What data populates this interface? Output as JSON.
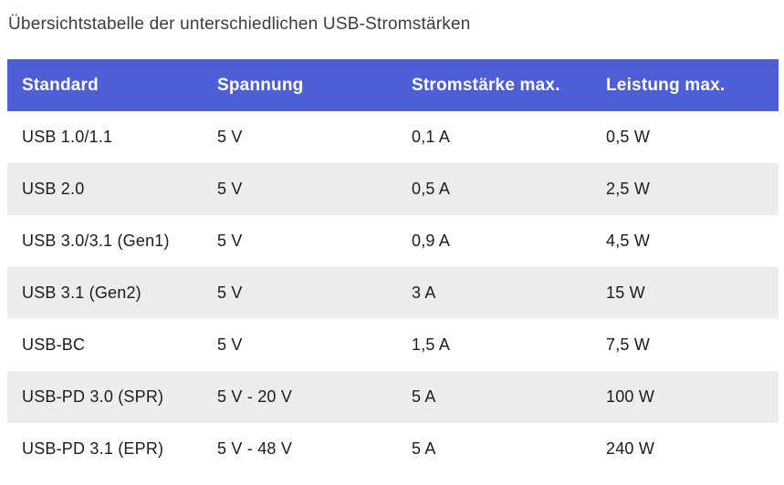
{
  "page": {
    "title": "Übersichtstabelle der unterschiedlichen USB-Stromstärken"
  },
  "colors": {
    "header_background": "#4d5fd7",
    "header_text": "#ffffff",
    "row_alt_background": "#ededee",
    "body_text": "#1c1c1c",
    "title_text": "#3d3d3d"
  },
  "chart_data": {
    "type": "table",
    "title": "Übersichtstabelle der unterschiedlichen USB-Stromstärken",
    "headers": [
      "Standard",
      "Spannung",
      "Stromstärke max.",
      "Leistung max."
    ],
    "rows": [
      [
        "USB 1.0/1.1",
        "5 V",
        "0,1 A",
        "0,5 W"
      ],
      [
        "USB 2.0",
        "5 V",
        "0,5 A",
        "2,5 W"
      ],
      [
        "USB 3.0/3.1 (Gen1)",
        "5 V",
        "0,9 A",
        "4,5 W"
      ],
      [
        "USB 3.1 (Gen2)",
        "5 V",
        "3 A",
        "15 W"
      ],
      [
        "USB-BC",
        "5 V",
        "1,5 A",
        "7,5 W"
      ],
      [
        "USB-PD 3.0 (SPR)",
        "5 V - 20 V",
        "5 A",
        "100 W"
      ],
      [
        "USB-PD 3.1 (EPR)",
        "5 V - 48 V",
        "5 A",
        "240 W"
      ]
    ]
  }
}
